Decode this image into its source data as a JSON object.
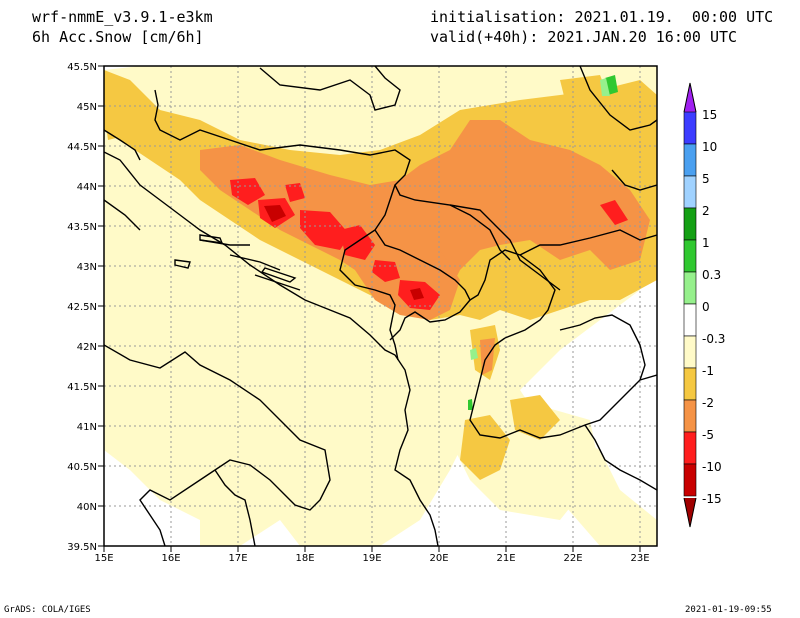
{
  "header": {
    "model": "wrf-nmmE_v3.9.1-e3km",
    "variable": "6h Acc.Snow [cm/6h]",
    "init": "initialisation: 2021.01.19.  00:00 UTC",
    "valid": "valid(+40h): 2021.JAN.20 16:00 UTC"
  },
  "map": {
    "lon_labels": [
      "15E",
      "16E",
      "17E",
      "18E",
      "19E",
      "20E",
      "21E",
      "22E",
      "23E"
    ],
    "lat_labels": [
      "45.5N",
      "45N",
      "44.5N",
      "44N",
      "43.5N",
      "43N",
      "42.5N",
      "42N",
      "41.5N",
      "41N",
      "40.5N",
      "40N",
      "39.5N"
    ]
  },
  "colorbar": {
    "labels": [
      "15",
      "10",
      "5",
      "2",
      "1",
      "0.3",
      "0",
      "-0.3",
      "-1",
      "-2",
      "-5",
      "-10",
      "-15"
    ],
    "colors": [
      "#a020f0",
      "#3c3cff",
      "#4aa0f0",
      "#a0d2ff",
      "#14a014",
      "#30c830",
      "#96f08c",
      "#ffffff",
      "#fffac8",
      "#f5c842",
      "#f59346",
      "#ff1e1e",
      "#c80000",
      "#a00000"
    ]
  },
  "footer": {
    "left": "GrADS: COLA/IGES",
    "right": "2021-01-19-09:55"
  }
}
